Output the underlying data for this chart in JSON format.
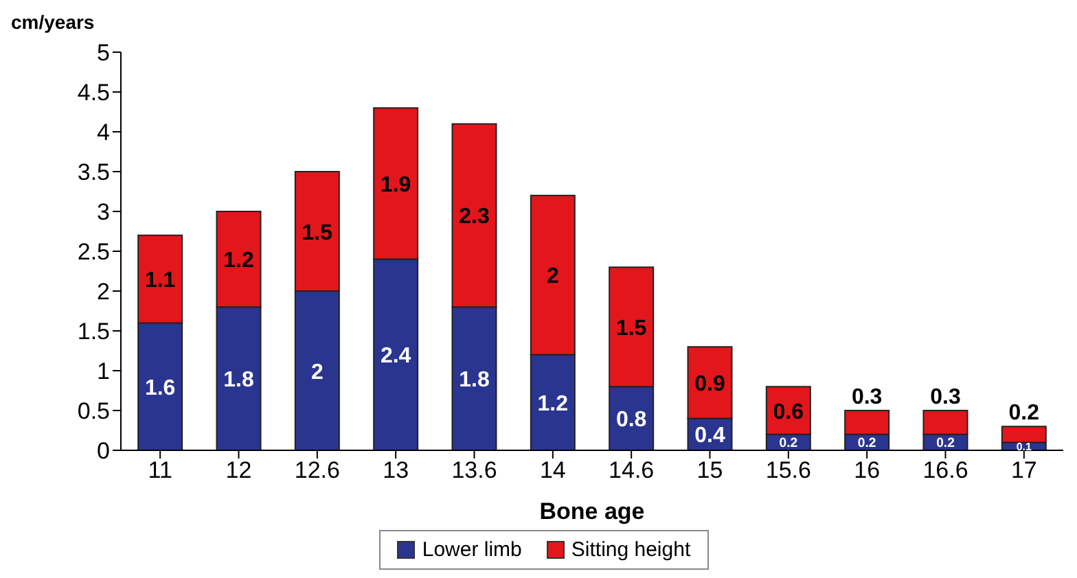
{
  "chart_data": {
    "type": "bar",
    "stacked": true,
    "xlabel": "Bone age",
    "ylabel": "cm/years",
    "categories": [
      "11",
      "12",
      "12.6",
      "13",
      "13.6",
      "14",
      "14.6",
      "15",
      "15.6",
      "16",
      "16.6",
      "17"
    ],
    "series": [
      {
        "name": "Lower limb",
        "color": "#2a3590",
        "values": [
          1.6,
          1.8,
          2,
          2.4,
          1.8,
          1.2,
          0.8,
          0.4,
          0.2,
          0.2,
          0.2,
          0.1
        ]
      },
      {
        "name": "Sitting height",
        "color": "#e3161c",
        "values": [
          1.1,
          1.2,
          1.5,
          1.9,
          2.3,
          2,
          1.5,
          0.9,
          0.6,
          0.3,
          0.3,
          0.2
        ]
      }
    ],
    "ylim": [
      0,
      5
    ],
    "yticks": [
      0,
      0.5,
      1,
      1.5,
      2,
      2.5,
      3,
      3.5,
      4,
      4.5,
      5
    ],
    "data_labels": true,
    "legend": "bottom",
    "grid": false
  }
}
